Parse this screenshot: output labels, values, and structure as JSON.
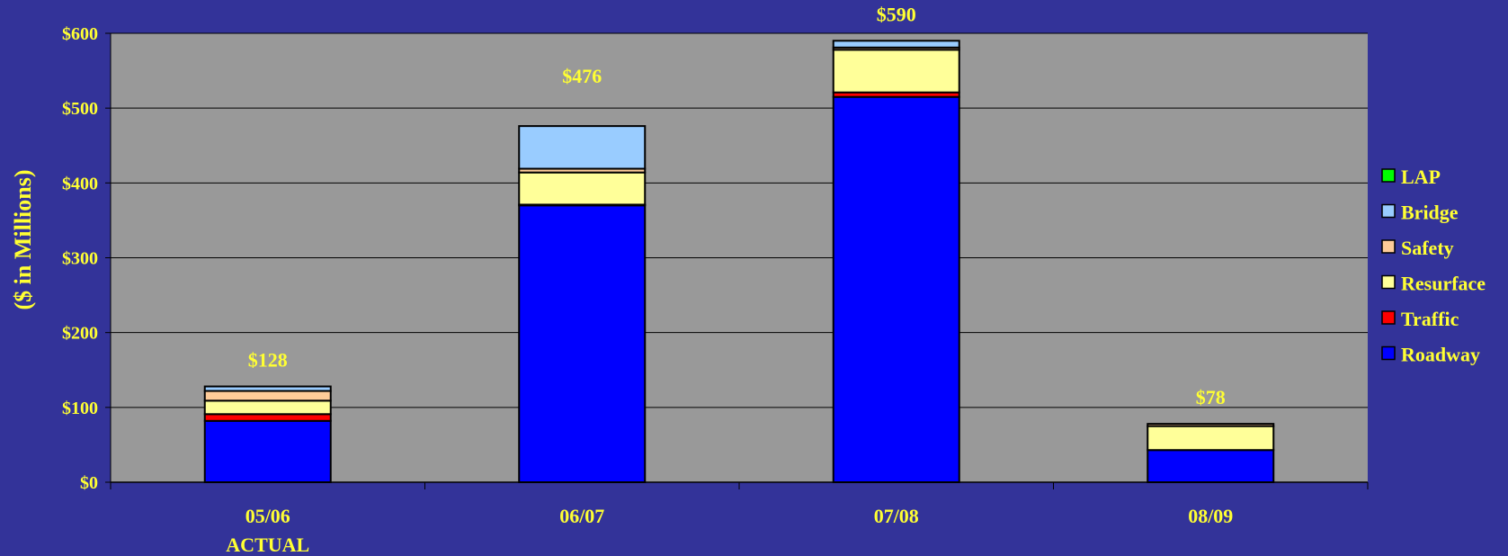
{
  "chart_data": {
    "type": "bar",
    "stacked": true,
    "ylabel": "($ in Millions)",
    "ylim": [
      0,
      600
    ],
    "y_ticks": [
      "$0",
      "$100",
      "$200",
      "$300",
      "$400",
      "$500",
      "$600"
    ],
    "categories": [
      "05/06",
      "06/07",
      "07/08",
      "08/09"
    ],
    "category_sublabels": [
      "ACTUAL",
      "",
      "",
      ""
    ],
    "totals": [
      "$128",
      "$476",
      "$590",
      "$78"
    ],
    "series": [
      {
        "name": "Roadway",
        "color": "#0000ff",
        "values": [
          82,
          370,
          515,
          43
        ]
      },
      {
        "name": "Traffic",
        "color": "#ff0000",
        "values": [
          9,
          1,
          6,
          0
        ]
      },
      {
        "name": "Resurface",
        "color": "#ffff99",
        "values": [
          18,
          43,
          57,
          32
        ]
      },
      {
        "name": "Safety",
        "color": "#ffcc99",
        "values": [
          13,
          5,
          3,
          3
        ]
      },
      {
        "name": "Bridge",
        "color": "#99ccff",
        "values": [
          6,
          57,
          9,
          0
        ]
      },
      {
        "name": "LAP",
        "color": "#00ff00",
        "values": [
          0,
          0,
          0,
          0
        ]
      }
    ],
    "legend": {
      "position": "right",
      "order": [
        "LAP",
        "Bridge",
        "Safety",
        "Resurface",
        "Traffic",
        "Roadway"
      ]
    },
    "grid": true,
    "plot_background": "#999999",
    "page_background": "#333399",
    "text_color": "#ffff33"
  }
}
